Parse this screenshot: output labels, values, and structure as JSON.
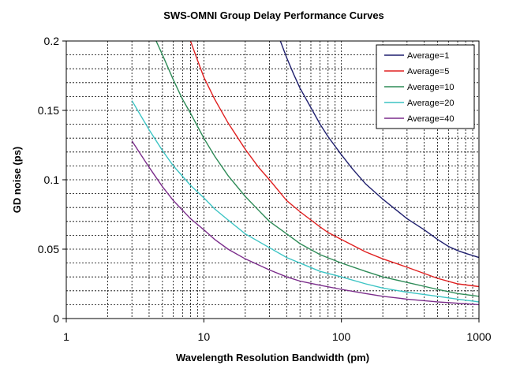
{
  "chart_data": {
    "type": "line",
    "title": "SWS-OMNI  Group Delay Performance Curves",
    "xlabel": "Wavelength Resolution Bandwidth (pm)",
    "ylabel": "GD noise (ps)",
    "x_scale": "log",
    "xlim": [
      1,
      1000
    ],
    "ylim": [
      0,
      0.2
    ],
    "x_ticks": [
      1,
      10,
      100,
      1000
    ],
    "x_tick_labels": [
      "1",
      "10",
      "100",
      "1000"
    ],
    "y_ticks": [
      0,
      0.05,
      0.1,
      0.15,
      0.2
    ],
    "y_tick_labels": [
      "0",
      "0.05",
      "0.1",
      "0.15",
      "0.2"
    ],
    "grid": true,
    "legend_position": "top-right",
    "series": [
      {
        "name": "Average=1",
        "color": "#1f1f6e",
        "x": [
          36,
          40,
          45,
          50,
          60,
          70,
          80,
          100,
          120,
          150,
          200,
          300,
          400,
          500,
          600,
          700,
          800,
          1000
        ],
        "y": [
          0.2,
          0.188,
          0.176,
          0.166,
          0.152,
          0.14,
          0.131,
          0.118,
          0.108,
          0.097,
          0.086,
          0.072,
          0.064,
          0.057,
          0.052,
          0.049,
          0.047,
          0.044
        ]
      },
      {
        "name": "Average=5",
        "color": "#e02020",
        "x": [
          8,
          9,
          10,
          12,
          15,
          20,
          25,
          30,
          40,
          50,
          60,
          70,
          80,
          100,
          150,
          200,
          300,
          500,
          700,
          1000
        ],
        "y": [
          0.2,
          0.186,
          0.174,
          0.158,
          0.141,
          0.122,
          0.109,
          0.1,
          0.085,
          0.077,
          0.071,
          0.066,
          0.062,
          0.057,
          0.048,
          0.043,
          0.037,
          0.029,
          0.025,
          0.023
        ]
      },
      {
        "name": "Average=10",
        "color": "#2e8b57",
        "x": [
          4.5,
          5,
          6,
          7,
          8,
          10,
          12,
          15,
          20,
          25,
          30,
          40,
          50,
          70,
          100,
          150,
          200,
          300,
          500,
          700,
          1000
        ],
        "y": [
          0.2,
          0.19,
          0.172,
          0.158,
          0.148,
          0.13,
          0.117,
          0.103,
          0.088,
          0.078,
          0.07,
          0.061,
          0.054,
          0.046,
          0.04,
          0.034,
          0.03,
          0.026,
          0.021,
          0.018,
          0.016
        ]
      },
      {
        "name": "Average=20",
        "color": "#3cc4c4",
        "x": [
          3,
          4,
          5,
          6,
          8,
          10,
          12,
          15,
          20,
          30,
          40,
          50,
          70,
          100,
          150,
          200,
          300,
          500,
          700,
          1000
        ],
        "y": [
          0.157,
          0.136,
          0.121,
          0.11,
          0.096,
          0.087,
          0.079,
          0.071,
          0.061,
          0.051,
          0.044,
          0.04,
          0.034,
          0.03,
          0.025,
          0.022,
          0.019,
          0.016,
          0.014,
          0.012
        ]
      },
      {
        "name": "Average=40",
        "color": "#7b2d8b",
        "x": [
          3,
          4,
          5,
          6,
          8,
          10,
          12,
          15,
          20,
          30,
          40,
          50,
          70,
          100,
          150,
          200,
          300,
          500,
          700,
          1000
        ],
        "y": [
          0.128,
          0.109,
          0.095,
          0.085,
          0.072,
          0.064,
          0.057,
          0.05,
          0.043,
          0.035,
          0.03,
          0.027,
          0.024,
          0.021,
          0.018,
          0.016,
          0.014,
          0.012,
          0.011,
          0.01
        ]
      }
    ]
  }
}
